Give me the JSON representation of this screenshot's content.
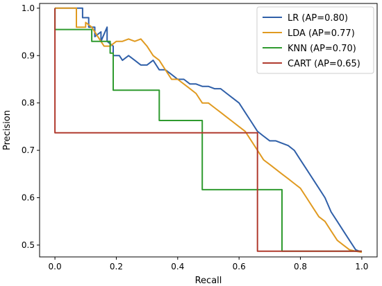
{
  "chart_data": {
    "type": "line",
    "xlabel": "Recall",
    "ylabel": "Precision",
    "xlim": [
      -0.05,
      1.05
    ],
    "ylim": [
      0.475,
      1.01
    ],
    "xticks": [
      "0.0",
      "0.2",
      "0.4",
      "0.6",
      "0.8",
      "1.0"
    ],
    "yticks": [
      "0.5",
      "0.6",
      "0.7",
      "0.8",
      "0.9",
      "1.0"
    ],
    "legend_position": "top-right",
    "series": [
      {
        "name": "LR (AP=0.80)",
        "color": "#2f5fa8",
        "points": [
          [
            0,
            1.0
          ],
          [
            0.03,
            1.0
          ],
          [
            0.06,
            1.0
          ],
          [
            0.09,
            1.0
          ],
          [
            0.09,
            0.98
          ],
          [
            0.11,
            0.98
          ],
          [
            0.11,
            0.96
          ],
          [
            0.13,
            0.96
          ],
          [
            0.13,
            0.94
          ],
          [
            0.15,
            0.95
          ],
          [
            0.15,
            0.93
          ],
          [
            0.17,
            0.96
          ],
          [
            0.17,
            0.93
          ],
          [
            0.19,
            0.92
          ],
          [
            0.19,
            0.9
          ],
          [
            0.21,
            0.9
          ],
          [
            0.22,
            0.89
          ],
          [
            0.24,
            0.9
          ],
          [
            0.26,
            0.89
          ],
          [
            0.28,
            0.88
          ],
          [
            0.3,
            0.88
          ],
          [
            0.32,
            0.89
          ],
          [
            0.34,
            0.87
          ],
          [
            0.36,
            0.87
          ],
          [
            0.38,
            0.86
          ],
          [
            0.4,
            0.85
          ],
          [
            0.42,
            0.85
          ],
          [
            0.44,
            0.84
          ],
          [
            0.46,
            0.84
          ],
          [
            0.48,
            0.835
          ],
          [
            0.5,
            0.835
          ],
          [
            0.52,
            0.83
          ],
          [
            0.54,
            0.83
          ],
          [
            0.56,
            0.82
          ],
          [
            0.58,
            0.81
          ],
          [
            0.6,
            0.8
          ],
          [
            0.62,
            0.78
          ],
          [
            0.64,
            0.76
          ],
          [
            0.66,
            0.74
          ],
          [
            0.68,
            0.73
          ],
          [
            0.7,
            0.72
          ],
          [
            0.72,
            0.72
          ],
          [
            0.74,
            0.715
          ],
          [
            0.76,
            0.71
          ],
          [
            0.78,
            0.7
          ],
          [
            0.8,
            0.68
          ],
          [
            0.82,
            0.66
          ],
          [
            0.84,
            0.64
          ],
          [
            0.86,
            0.62
          ],
          [
            0.88,
            0.6
          ],
          [
            0.9,
            0.57
          ],
          [
            0.92,
            0.55
          ],
          [
            0.94,
            0.53
          ],
          [
            0.96,
            0.51
          ],
          [
            0.98,
            0.49
          ],
          [
            1.0,
            0.485
          ]
        ]
      },
      {
        "name": "LDA (AP=0.77)",
        "color": "#e09a20",
        "points": [
          [
            0,
            1.0
          ],
          [
            0.03,
            1.0
          ],
          [
            0.06,
            1.0
          ],
          [
            0.07,
            1.0
          ],
          [
            0.07,
            0.96
          ],
          [
            0.09,
            0.96
          ],
          [
            0.1,
            0.96
          ],
          [
            0.1,
            0.97
          ],
          [
            0.12,
            0.96
          ],
          [
            0.14,
            0.94
          ],
          [
            0.16,
            0.92
          ],
          [
            0.18,
            0.92
          ],
          [
            0.2,
            0.93
          ],
          [
            0.22,
            0.93
          ],
          [
            0.24,
            0.935
          ],
          [
            0.26,
            0.93
          ],
          [
            0.28,
            0.935
          ],
          [
            0.3,
            0.92
          ],
          [
            0.32,
            0.9
          ],
          [
            0.34,
            0.89
          ],
          [
            0.36,
            0.87
          ],
          [
            0.38,
            0.85
          ],
          [
            0.4,
            0.85
          ],
          [
            0.42,
            0.84
          ],
          [
            0.44,
            0.83
          ],
          [
            0.46,
            0.82
          ],
          [
            0.48,
            0.8
          ],
          [
            0.5,
            0.8
          ],
          [
            0.52,
            0.79
          ],
          [
            0.54,
            0.78
          ],
          [
            0.56,
            0.77
          ],
          [
            0.58,
            0.76
          ],
          [
            0.6,
            0.75
          ],
          [
            0.62,
            0.74
          ],
          [
            0.64,
            0.72
          ],
          [
            0.66,
            0.7
          ],
          [
            0.68,
            0.68
          ],
          [
            0.7,
            0.67
          ],
          [
            0.72,
            0.66
          ],
          [
            0.74,
            0.65
          ],
          [
            0.76,
            0.64
          ],
          [
            0.78,
            0.63
          ],
          [
            0.8,
            0.62
          ],
          [
            0.82,
            0.6
          ],
          [
            0.84,
            0.58
          ],
          [
            0.86,
            0.56
          ],
          [
            0.88,
            0.55
          ],
          [
            0.9,
            0.53
          ],
          [
            0.92,
            0.51
          ],
          [
            0.94,
            0.5
          ],
          [
            0.96,
            0.49
          ],
          [
            0.98,
            0.487
          ],
          [
            1.0,
            0.485
          ]
        ]
      },
      {
        "name": "KNN (AP=0.70)",
        "color": "#2e9a2e",
        "points": [
          [
            0,
            1.0
          ],
          [
            0,
            0.955
          ],
          [
            0.12,
            0.955
          ],
          [
            0.12,
            0.93
          ],
          [
            0.18,
            0.93
          ],
          [
            0.18,
            0.905
          ],
          [
            0.19,
            0.905
          ],
          [
            0.19,
            0.827
          ],
          [
            0.34,
            0.827
          ],
          [
            0.34,
            0.763
          ],
          [
            0.48,
            0.763
          ],
          [
            0.48,
            0.617
          ],
          [
            0.74,
            0.617
          ],
          [
            0.74,
            0.487
          ],
          [
            1.0,
            0.487
          ]
        ]
      },
      {
        "name": "CART (AP=0.65)",
        "color": "#b03a2e",
        "points": [
          [
            0,
            1.0
          ],
          [
            0,
            0.737
          ],
          [
            0.66,
            0.737
          ],
          [
            0.66,
            0.487
          ],
          [
            1.0,
            0.487
          ]
        ]
      }
    ]
  }
}
